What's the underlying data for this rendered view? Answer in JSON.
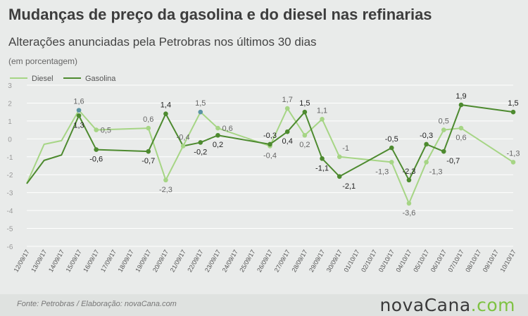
{
  "header": {
    "title": "Mudanças de preço da gasolina e do diesel nas refinarias",
    "subtitle": "Alterações anunciadas pela Petrobras nos últimos 30 dias",
    "unit": "(em porcentagem)"
  },
  "footer": {
    "source": "Fonte:  Petrobras  / Elaboração:  novaCana.com",
    "brand_main": "novaCana",
    "brand_suffix": ".com"
  },
  "colors": {
    "diesel": "#a6d585",
    "gasolina": "#4d8a2f",
    "highlight": "#5b94a4",
    "grid": "#ffffff",
    "axis_text": "#9a9a9a"
  },
  "chart_data": {
    "type": "line",
    "legend_position": "top-left",
    "grid": true,
    "ylim": [
      -6,
      3
    ],
    "yticks": [
      3,
      2,
      1,
      0,
      -1,
      -2,
      -3,
      -4,
      -5,
      -6
    ],
    "x": [
      "12/09/17",
      "13/09/17",
      "14/09/17",
      "15/09/17",
      "16/09/17",
      "17/09/17",
      "18/09/17",
      "19/09/17",
      "20/09/17",
      "21/09/17",
      "22/09/17",
      "23/09/17",
      "24/09/17",
      "25/09/17",
      "26/09/17",
      "27/09/17",
      "28/09/17",
      "29/09/17",
      "30/09/17",
      "01/10/17",
      "02/10/17",
      "03/10/17",
      "04/10/17",
      "05/10/17",
      "06/10/17",
      "07/10/17",
      "08/10/17",
      "09/10/17",
      "10/10/17"
    ],
    "series": [
      {
        "name": "Diesel",
        "points": [
          {
            "x": "12/09/17",
            "y": -2.5
          },
          {
            "x": "13/09/17",
            "y": -0.3
          },
          {
            "x": "14/09/17",
            "y": -0.1
          },
          {
            "x": "15/09/17",
            "y": 1.6,
            "label": "1,6",
            "pos": "above",
            "highlight": true
          },
          {
            "x": "16/09/17",
            "y": 0.5,
            "label": "0,5",
            "pos": "right"
          },
          {
            "x": "19/09/17",
            "y": 0.6,
            "label": "0,6",
            "pos": "above"
          },
          {
            "x": "20/09/17",
            "y": -2.3,
            "label": "-2,3",
            "pos": "below"
          },
          {
            "x": "21/09/17",
            "y": -0.4,
            "label": "-0,4",
            "pos": "above"
          },
          {
            "x": "22/09/17",
            "y": 1.5,
            "label": "1,5",
            "pos": "above",
            "highlight": true
          },
          {
            "x": "23/09/17",
            "y": 0.6,
            "label": "0,6",
            "pos": "right"
          },
          {
            "x": "26/09/17",
            "y": -0.4,
            "label": "-0,4",
            "pos": "below"
          },
          {
            "x": "27/09/17",
            "y": 1.7,
            "label": "1,7",
            "pos": "above"
          },
          {
            "x": "28/09/17",
            "y": 0.2,
            "label": "0,2",
            "pos": "below"
          },
          {
            "x": "29/09/17",
            "y": 1.1,
            "label": "1,1",
            "pos": "above"
          },
          {
            "x": "30/09/17",
            "y": -1.0,
            "label": "-1",
            "pos": "aboveright"
          },
          {
            "x": "03/10/17",
            "y": -1.3,
            "label": "-1,3",
            "pos": "belowleft"
          },
          {
            "x": "04/10/17",
            "y": -3.6,
            "label": "-3,6",
            "pos": "below"
          },
          {
            "x": "05/10/17",
            "y": -1.3,
            "label": "-1,3",
            "pos": "belowright"
          },
          {
            "x": "06/10/17",
            "y": 0.5,
            "label": "0,5",
            "pos": "above"
          },
          {
            "x": "07/10/17",
            "y": 0.6,
            "label": "0,6",
            "pos": "below"
          },
          {
            "x": "10/10/17",
            "y": -1.3,
            "label": "-1,3",
            "pos": "above"
          }
        ]
      },
      {
        "name": "Gasolina",
        "points": [
          {
            "x": "12/09/17",
            "y": -2.5
          },
          {
            "x": "13/09/17",
            "y": -1.2
          },
          {
            "x": "14/09/17",
            "y": -0.9
          },
          {
            "x": "15/09/17",
            "y": 1.3,
            "label": "1,3",
            "pos": "below"
          },
          {
            "x": "16/09/17",
            "y": -0.6,
            "label": "-0,6",
            "pos": "below"
          },
          {
            "x": "19/09/17",
            "y": -0.7,
            "label": "-0,7",
            "pos": "below"
          },
          {
            "x": "20/09/17",
            "y": 1.4,
            "label": "1,4",
            "pos": "above"
          },
          {
            "x": "21/09/17",
            "y": -0.4
          },
          {
            "x": "22/09/17",
            "y": -0.2,
            "label": "-0,2",
            "pos": "below"
          },
          {
            "x": "23/09/17",
            "y": 0.2,
            "label": "0,2",
            "pos": "below"
          },
          {
            "x": "26/09/17",
            "y": -0.3,
            "label": "-0,3",
            "pos": "above"
          },
          {
            "x": "27/09/17",
            "y": 0.4,
            "label": "0,4",
            "pos": "below"
          },
          {
            "x": "28/09/17",
            "y": 1.5,
            "label": "1,5",
            "pos": "above"
          },
          {
            "x": "29/09/17",
            "y": -1.1,
            "label": "-1,1",
            "pos": "below"
          },
          {
            "x": "30/09/17",
            "y": -2.1,
            "label": "-2,1",
            "pos": "belowright"
          },
          {
            "x": "03/10/17",
            "y": -0.5,
            "label": "-0,5",
            "pos": "above"
          },
          {
            "x": "04/10/17",
            "y": -2.3,
            "label": "-2,3",
            "pos": "above"
          },
          {
            "x": "05/10/17",
            "y": -0.3,
            "label": "-0,3",
            "pos": "above"
          },
          {
            "x": "06/10/17",
            "y": -0.7,
            "label": "-0,7",
            "pos": "belowright"
          },
          {
            "x": "07/10/17",
            "y": 1.9,
            "label": "1,9",
            "pos": "above"
          },
          {
            "x": "10/10/17",
            "y": 1.5,
            "label": "1,5",
            "pos": "above"
          }
        ]
      }
    ]
  }
}
